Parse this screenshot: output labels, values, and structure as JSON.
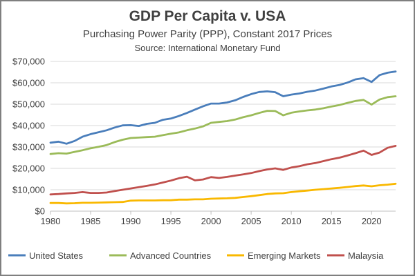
{
  "chart_data": {
    "type": "line",
    "title": "GDP Per Capita v. USA",
    "subtitle": "Purchasing Power Parity (PPP), Constant 2017 Prices",
    "source": "Source:  International Monetary Fund",
    "xlabel": "",
    "ylabel": "",
    "xlim": [
      1980,
      2023
    ],
    "ylim": [
      0,
      70000
    ],
    "x_ticks": [
      1980,
      1985,
      1990,
      1995,
      2000,
      2005,
      2010,
      2015,
      2020
    ],
    "x_tick_labels": [
      "1980",
      "1985",
      "1990",
      "1995",
      "2000",
      "2005",
      "2010",
      "2015",
      "2020"
    ],
    "y_ticks": [
      0,
      10000,
      20000,
      30000,
      40000,
      50000,
      60000,
      70000
    ],
    "y_tick_labels": [
      "$0",
      "$10,000",
      "$20,000",
      "$30,000",
      "$40,000",
      "$50,000",
      "$60,000",
      "$70,000"
    ],
    "grid": true,
    "legend_position": "bottom",
    "x": [
      1980,
      1981,
      1982,
      1983,
      1984,
      1985,
      1986,
      1987,
      1988,
      1989,
      1990,
      1991,
      1992,
      1993,
      1994,
      1995,
      1996,
      1997,
      1998,
      1999,
      2000,
      2001,
      2002,
      2003,
      2004,
      2005,
      2006,
      2007,
      2008,
      2009,
      2010,
      2011,
      2012,
      2013,
      2014,
      2015,
      2016,
      2017,
      2018,
      2019,
      2020,
      2021,
      2022,
      2023
    ],
    "series": [
      {
        "name": "United States",
        "color": "#4a7ebb",
        "values": [
          32000,
          32500,
          31500,
          32800,
          34800,
          36000,
          36900,
          37800,
          39100,
          40100,
          40200,
          39800,
          40800,
          41300,
          42700,
          43300,
          44500,
          45900,
          47500,
          49000,
          50300,
          50300,
          50800,
          51800,
          53400,
          54700,
          55700,
          56000,
          55600,
          53700,
          54500,
          55000,
          55800,
          56400,
          57300,
          58300,
          59000,
          60100,
          61600,
          62200,
          60400,
          63600,
          64700,
          65300
        ]
      },
      {
        "name": "Advanced Countries",
        "color": "#9bbb59",
        "values": [
          26700,
          27100,
          26900,
          27700,
          28500,
          29400,
          30100,
          30900,
          32300,
          33400,
          34200,
          34400,
          34600,
          34800,
          35500,
          36200,
          36800,
          37800,
          38600,
          39600,
          41300,
          41700,
          42100,
          42800,
          43900,
          44800,
          45900,
          46900,
          46800,
          44800,
          46000,
          46600,
          47100,
          47500,
          48100,
          48900,
          49600,
          50600,
          51500,
          52000,
          49800,
          52200,
          53300,
          53700
        ]
      },
      {
        "name": "Emerging Markets",
        "color": "#f9b800",
        "values": [
          3800,
          3800,
          3600,
          3700,
          3900,
          3900,
          4000,
          4100,
          4200,
          4300,
          4900,
          5000,
          5000,
          5000,
          5100,
          5100,
          5400,
          5400,
          5500,
          5500,
          5800,
          5900,
          6000,
          6200,
          6600,
          7000,
          7500,
          8000,
          8300,
          8400,
          8900,
          9300,
          9600,
          10000,
          10300,
          10600,
          10900,
          11300,
          11700,
          12000,
          11600,
          12100,
          12400,
          12800
        ]
      },
      {
        "name": "Malaysia",
        "color": "#c0504d",
        "values": [
          7800,
          8000,
          8300,
          8500,
          8900,
          8500,
          8500,
          8700,
          9400,
          10000,
          10600,
          11200,
          11800,
          12500,
          13400,
          14300,
          15400,
          16100,
          14400,
          14800,
          15900,
          15500,
          16000,
          16600,
          17200,
          17800,
          18700,
          19500,
          20000,
          19300,
          20400,
          21000,
          21900,
          22500,
          23400,
          24300,
          25000,
          26000,
          27100,
          28300,
          26300,
          27400,
          29600,
          30500
        ]
      }
    ]
  }
}
